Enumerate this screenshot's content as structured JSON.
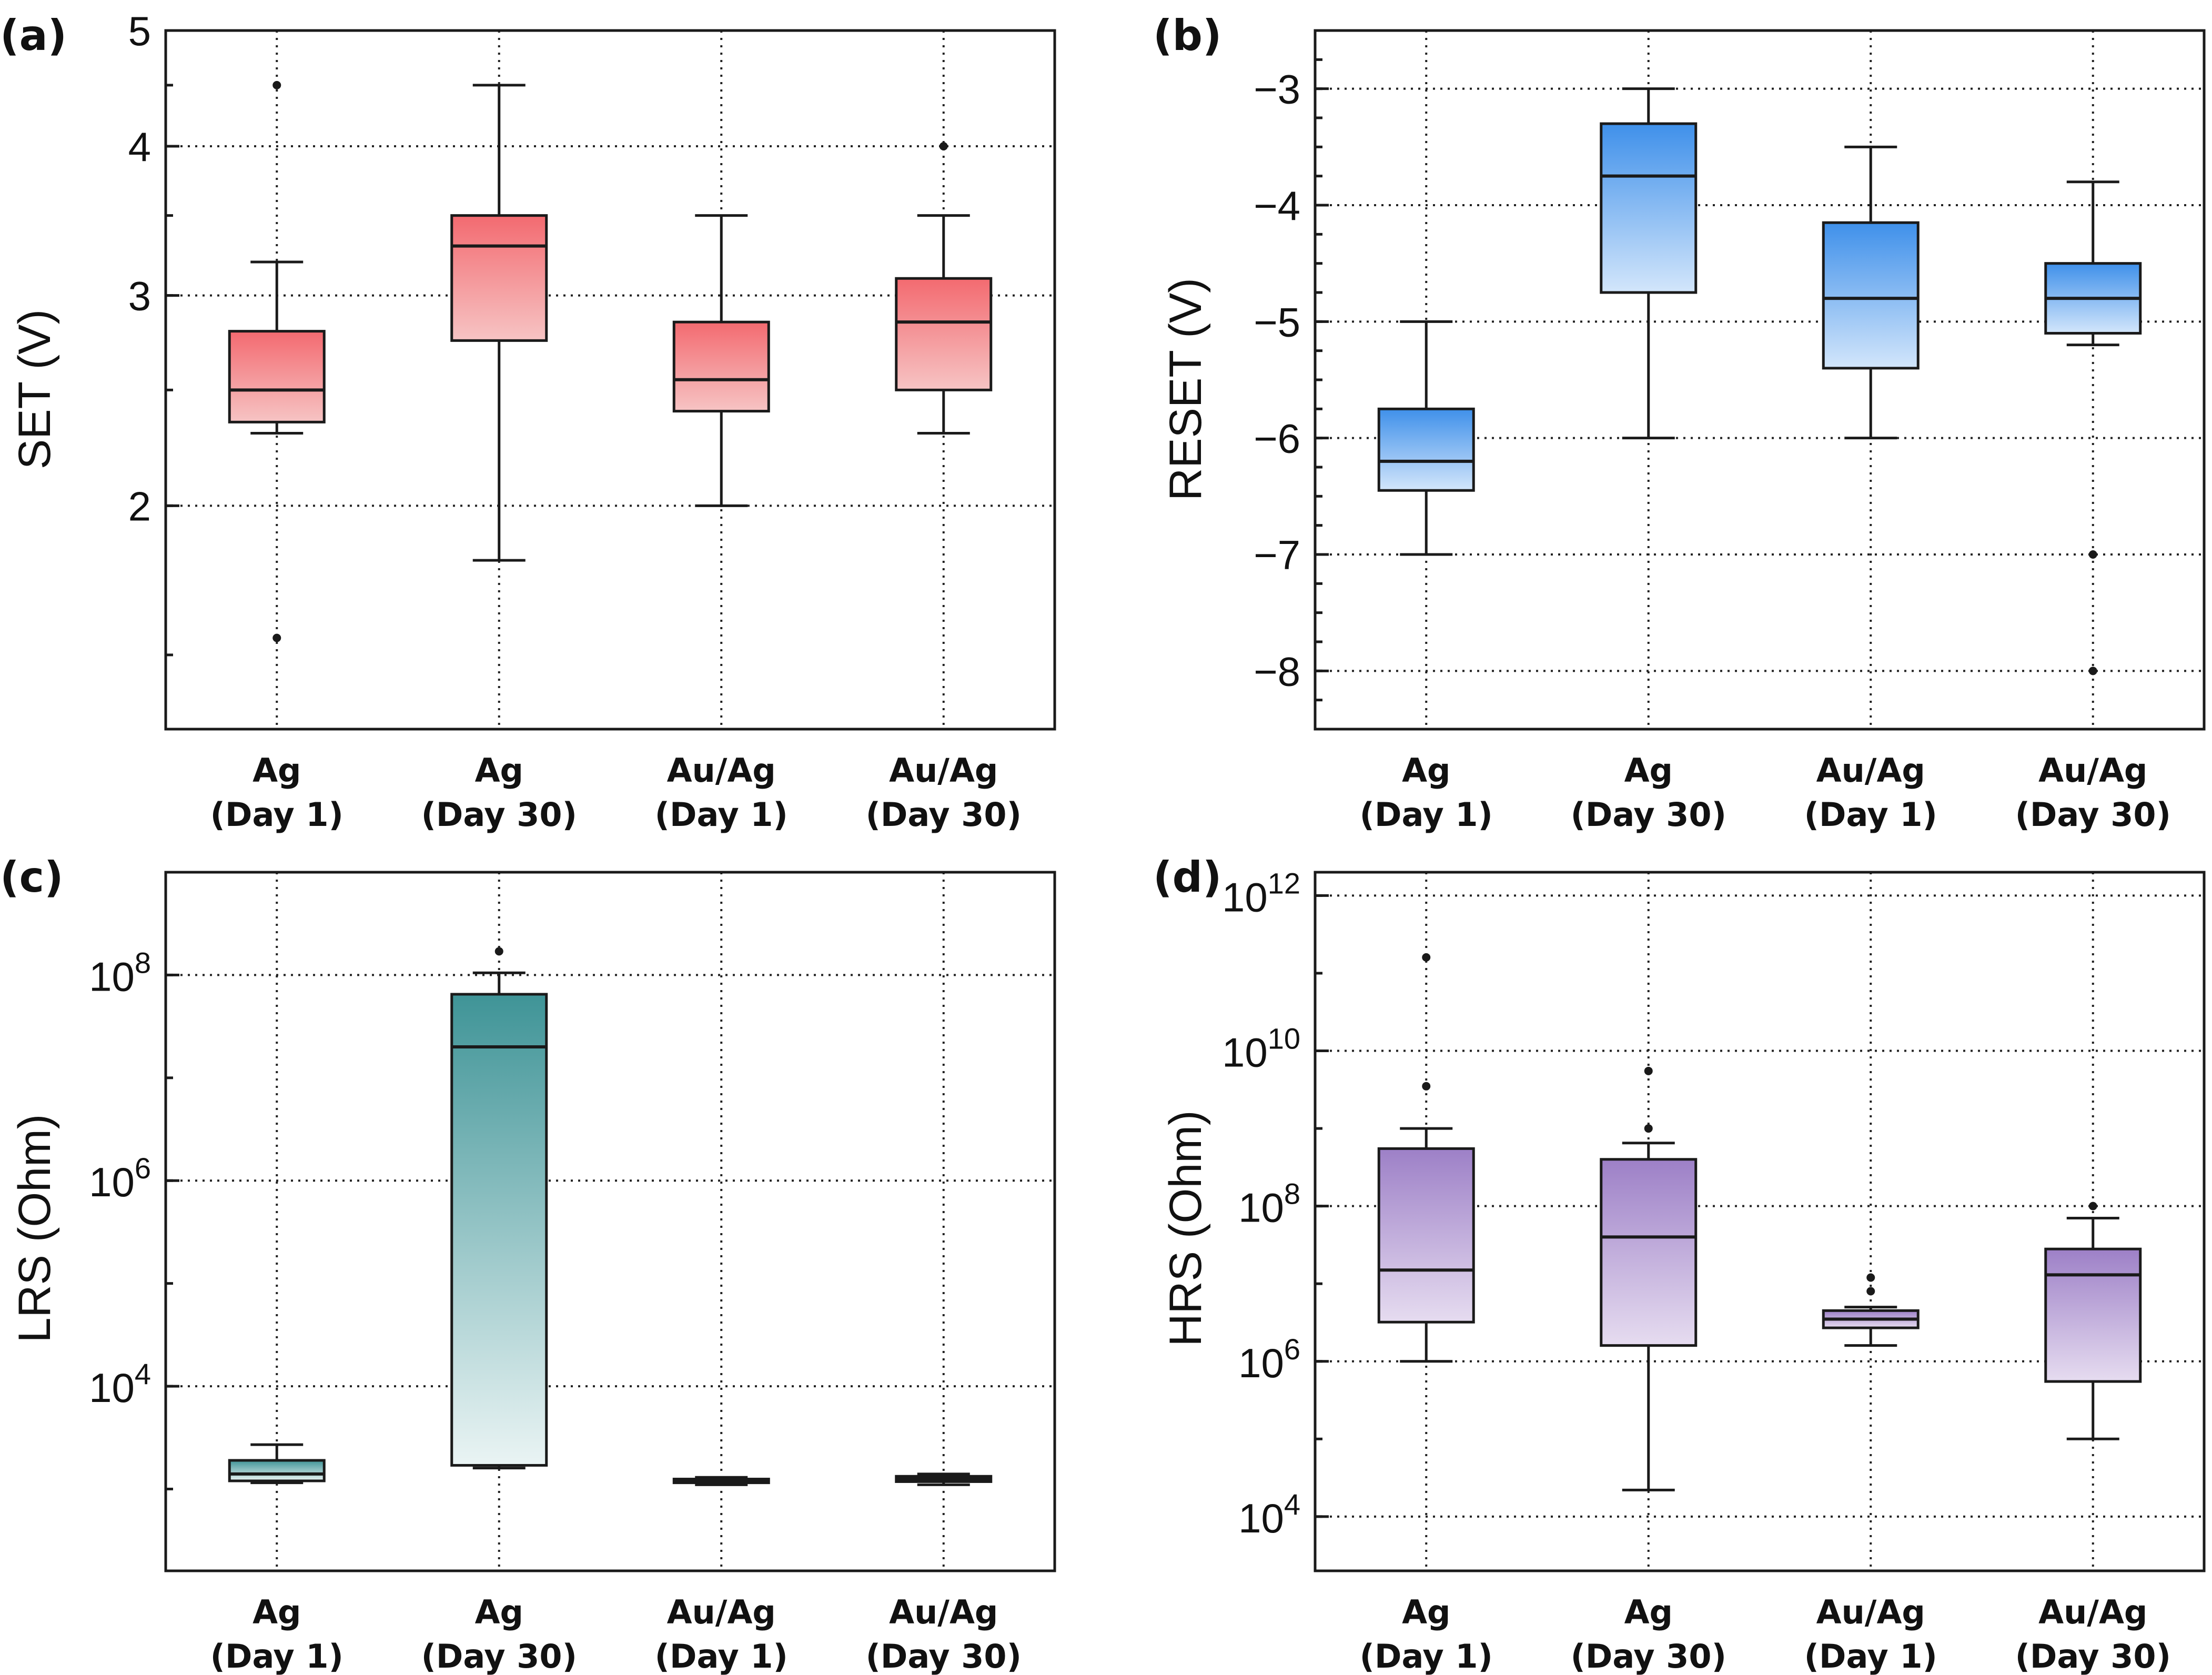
{
  "figure": {
    "categories": [
      "Ag (Day 1)",
      "Ag (Day 30)",
      "Au/Ag (Day 1)",
      "Au/Ag (Day 30)"
    ],
    "category_lines": [
      [
        "Ag",
        "(Day 1)"
      ],
      [
        "Ag",
        "(Day 30)"
      ],
      [
        "Au/Ag",
        "(Day 1)"
      ],
      [
        "Au/Ag",
        "(Day 30)"
      ]
    ]
  },
  "chart_data": [
    {
      "type": "box",
      "panel": "(a)",
      "ylabel": "SET (V)",
      "yscale": "log",
      "ylim": [
        1.3,
        5.0
      ],
      "yticks": [
        2,
        3,
        4,
        5
      ],
      "ytick_labels": [
        "2",
        "3",
        "4",
        "5"
      ],
      "colors": {
        "top": "#f36a70",
        "bottom": "#f6c4c4"
      },
      "categories": [
        "Ag (Day 1)",
        "Ag (Day 30)",
        "Au/Ag (Day 1)",
        "Au/Ag (Day 30)"
      ],
      "boxes": [
        {
          "whisker_low": 2.3,
          "q1": 2.35,
          "median": 2.5,
          "q3": 2.8,
          "whisker_high": 3.2,
          "outliers": [
            4.5,
            1.55
          ]
        },
        {
          "whisker_low": 1.8,
          "q1": 2.75,
          "median": 3.3,
          "q3": 3.5,
          "whisker_high": 4.5,
          "outliers": []
        },
        {
          "whisker_low": 2.0,
          "q1": 2.4,
          "median": 2.55,
          "q3": 2.85,
          "whisker_high": 3.5,
          "outliers": []
        },
        {
          "whisker_low": 2.3,
          "q1": 2.5,
          "median": 2.85,
          "q3": 3.1,
          "whisker_high": 3.5,
          "outliers": [
            4.0
          ]
        }
      ]
    },
    {
      "type": "box",
      "panel": "(b)",
      "ylabel": "RESET (V)",
      "yscale": "linear",
      "ylim": [
        -8.5,
        -2.5
      ],
      "yticks": [
        -8,
        -7,
        -6,
        -5,
        -4,
        -3
      ],
      "ytick_labels": [
        "−8",
        "−7",
        "−6",
        "−5",
        "−4",
        "−3"
      ],
      "colors": {
        "top": "#3f90ea",
        "bottom": "#d3e6fb"
      },
      "categories": [
        "Ag (Day 1)",
        "Ag (Day 30)",
        "Au/Ag (Day 1)",
        "Au/Ag (Day 30)"
      ],
      "boxes": [
        {
          "whisker_low": -7.0,
          "q1": -6.45,
          "median": -6.2,
          "q3": -5.75,
          "whisker_high": -5.0,
          "outliers": []
        },
        {
          "whisker_low": -6.0,
          "q1": -4.75,
          "median": -3.75,
          "q3": -3.3,
          "whisker_high": -3.0,
          "outliers": []
        },
        {
          "whisker_low": -6.0,
          "q1": -5.4,
          "median": -4.8,
          "q3": -4.15,
          "whisker_high": -3.5,
          "outliers": []
        },
        {
          "whisker_low": -5.2,
          "q1": -5.1,
          "median": -4.8,
          "q3": -4.5,
          "whisker_high": -3.8,
          "outliers": [
            -7.0,
            -8.0
          ]
        }
      ]
    },
    {
      "type": "box",
      "panel": "(c)",
      "ylabel": "LRS (Ohm)",
      "yscale": "log",
      "ylim": [
        160.0,
        1000000000.0
      ],
      "yticks": [
        10000.0,
        1000000.0,
        100000000.0
      ],
      "ytick_base": [
        "10",
        "10",
        "10"
      ],
      "ytick_exp": [
        "4",
        "6",
        "8"
      ],
      "colors": {
        "top": "#3f9497",
        "bottom": "#eaf4f4"
      },
      "categories": [
        "Ag (Day 1)",
        "Ag (Day 30)",
        "Au/Ag (Day 1)",
        "Au/Ag (Day 30)"
      ],
      "boxes": [
        {
          "whisker_low": 1150,
          "q1": 1200,
          "median": 1400,
          "q3": 1900,
          "whisker_high": 2700,
          "outliers": []
        },
        {
          "whisker_low": 1600,
          "q1": 1700,
          "median": 20000000.0,
          "q3": 65000000.0,
          "whisker_high": 105000000.0,
          "outliers": [
            170000000.0
          ]
        },
        {
          "whisker_low": 1100,
          "q1": 1150,
          "median": 1200,
          "q3": 1250,
          "whisker_high": 1300,
          "outliers": []
        },
        {
          "whisker_low": 1100,
          "q1": 1180,
          "median": 1250,
          "q3": 1330,
          "whisker_high": 1400,
          "outliers": []
        }
      ]
    },
    {
      "type": "box",
      "panel": "(d)",
      "ylabel": "HRS (Ohm)",
      "yscale": "log",
      "ylim": [
        2000.0,
        2000000000000.0
      ],
      "yticks": [
        10000.0,
        1000000.0,
        100000000.0,
        10000000000.0,
        1000000000000.0
      ],
      "ytick_base": [
        "10",
        "10",
        "10",
        "10",
        "10"
      ],
      "ytick_exp": [
        "4",
        "6",
        "8",
        "10",
        "12"
      ],
      "colors": {
        "top": "#9d80c7",
        "bottom": "#e6dcf0"
      },
      "categories": [
        "Ag (Day 1)",
        "Ag (Day 30)",
        "Au/Ag (Day 1)",
        "Au/Ag (Day 30)"
      ],
      "boxes": [
        {
          "whisker_low": 1000000.0,
          "q1": 3200000.0,
          "median": 15000000.0,
          "q3": 550000000.0,
          "whisker_high": 1000000000.0,
          "outliers": [
            160000000000.0,
            3500000000.0
          ]
        },
        {
          "whisker_low": 22000.0,
          "q1": 1600000.0,
          "median": 40000000.0,
          "q3": 400000000.0,
          "whisker_high": 650000000.0,
          "outliers": [
            5500000000.0,
            1000000000.0
          ]
        },
        {
          "whisker_low": 1600000.0,
          "q1": 2700000.0,
          "median": 3500000.0,
          "q3": 4500000.0,
          "whisker_high": 5000000.0,
          "outliers": [
            12000000.0,
            8000000.0
          ]
        },
        {
          "whisker_low": 100000.0,
          "q1": 550000.0,
          "median": 13000000.0,
          "q3": 28000000.0,
          "whisker_high": 70000000.0,
          "outliers": [
            100000000.0
          ]
        }
      ]
    }
  ]
}
